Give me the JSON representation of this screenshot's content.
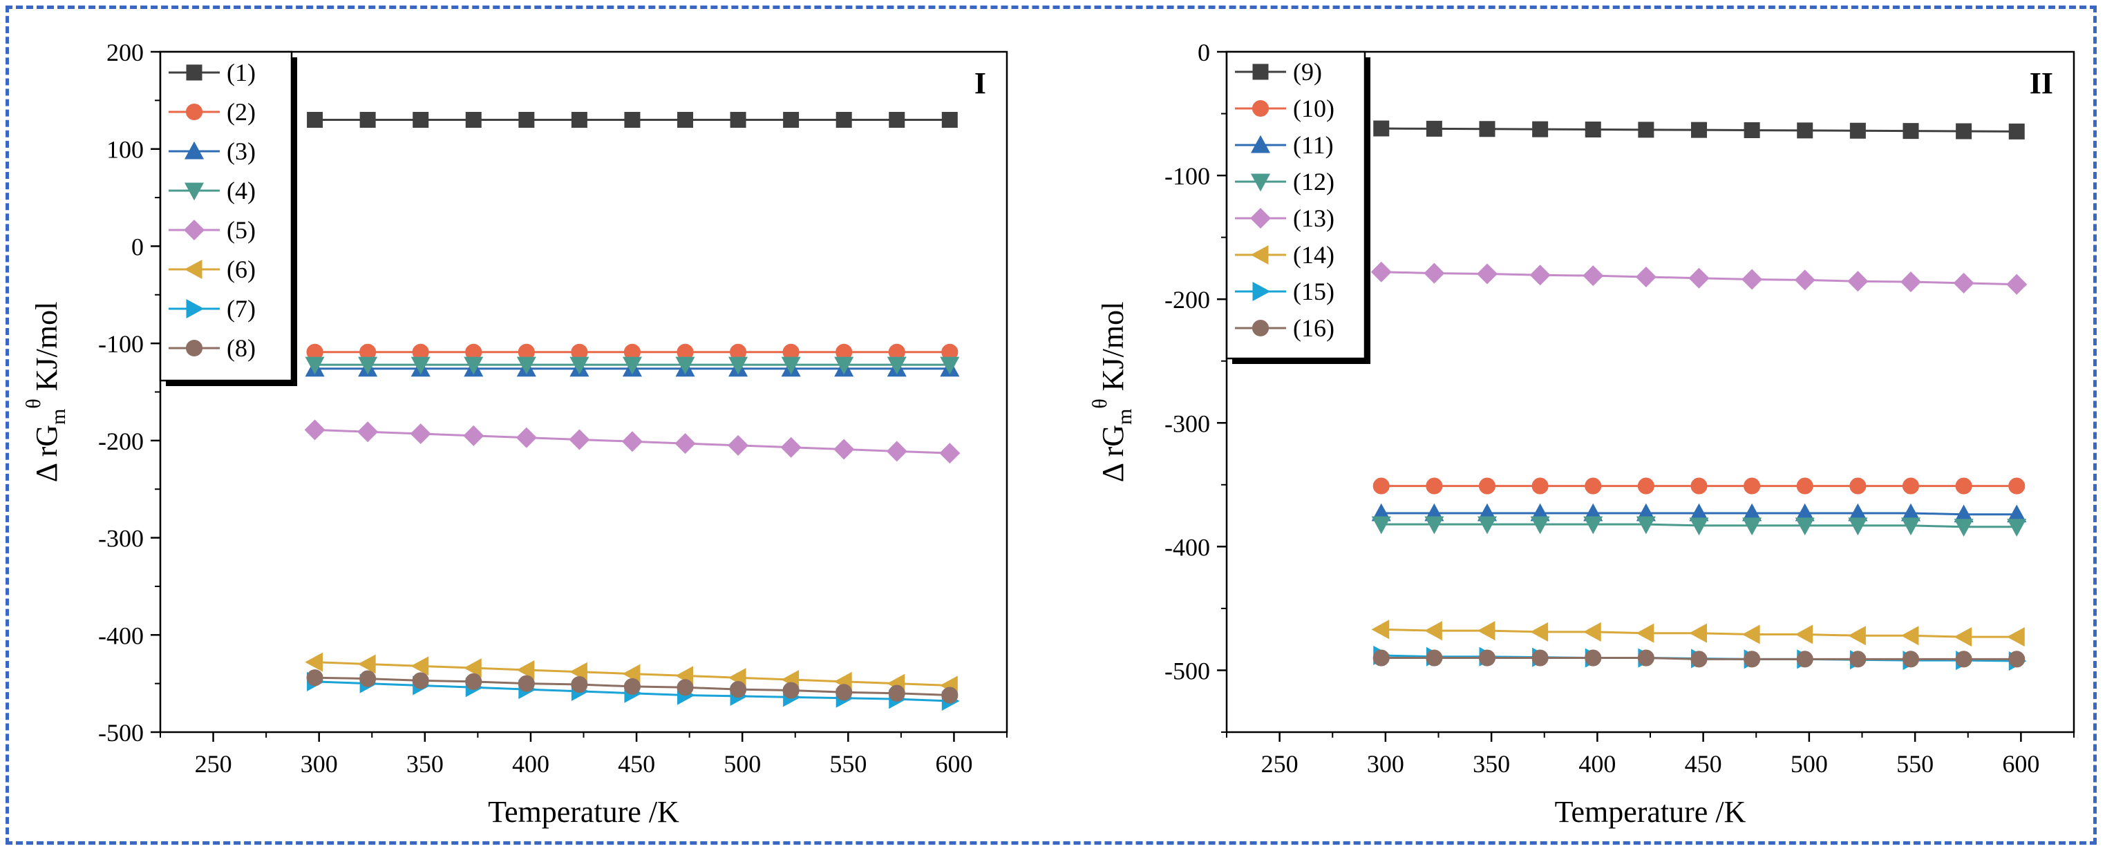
{
  "chart_data": [
    {
      "type": "line",
      "panel_label": "I",
      "xlabel": "Temperature /K",
      "ylabel": "Δ rG_m^θ KJ/mol",
      "ylabel_parts": {
        "prefix": "Δ rG",
        "sub": "m",
        "sup": "θ",
        "suffix": " KJ/mol"
      },
      "xlim": [
        225,
        625
      ],
      "ylim": [
        -500,
        200
      ],
      "xticks": [
        250,
        300,
        350,
        400,
        450,
        500,
        550,
        600
      ],
      "yticks": [
        -500,
        -400,
        -300,
        -200,
        -100,
        0,
        100,
        200
      ],
      "legend_position": "top-left",
      "x": [
        298,
        323,
        348,
        373,
        398,
        423,
        448,
        473,
        498,
        523,
        548,
        573,
        598
      ],
      "series": [
        {
          "name": "(1)",
          "color": "#404040",
          "marker": "square",
          "values": [
            130,
            130,
            130,
            130,
            130,
            130,
            130,
            130,
            130,
            130,
            130,
            130,
            130
          ]
        },
        {
          "name": "(2)",
          "color": "#e8694a",
          "marker": "circle",
          "values": [
            -109,
            -109,
            -109,
            -109,
            -109,
            -109,
            -109,
            -109,
            -109,
            -109,
            -109,
            -109,
            -109
          ]
        },
        {
          "name": "(3)",
          "color": "#2e6db4",
          "marker": "triangle-up",
          "values": [
            -126,
            -126,
            -126,
            -126,
            -126,
            -126,
            -126,
            -126,
            -126,
            -126,
            -126,
            -126,
            -126
          ]
        },
        {
          "name": "(4)",
          "color": "#4a9a8e",
          "marker": "triangle-down",
          "values": [
            -122,
            -122,
            -122,
            -122,
            -122,
            -122,
            -122,
            -122,
            -122,
            -122,
            -122,
            -122,
            -122
          ]
        },
        {
          "name": "(5)",
          "color": "#c58bc9",
          "marker": "diamond",
          "values": [
            -189,
            -191,
            -193,
            -195,
            -197,
            -199,
            -201,
            -203,
            -205,
            -207,
            -209,
            -211,
            -213
          ]
        },
        {
          "name": "(6)",
          "color": "#d8a83a",
          "marker": "triangle-left",
          "values": [
            -428,
            -430,
            -432,
            -434,
            -436,
            -438,
            -440,
            -442,
            -444,
            -446,
            -448,
            -450,
            -452
          ]
        },
        {
          "name": "(7)",
          "color": "#1aa3d6",
          "marker": "triangle-right",
          "values": [
            -448,
            -450,
            -452,
            -454,
            -456,
            -458,
            -460,
            -462,
            -463,
            -464,
            -465,
            -466,
            -468
          ]
        },
        {
          "name": "(8)",
          "color": "#8c6e62",
          "marker": "circle",
          "values": [
            -444,
            -445,
            -447,
            -448,
            -450,
            -451,
            -453,
            -454,
            -456,
            -457,
            -459,
            -460,
            -462
          ]
        }
      ]
    },
    {
      "type": "line",
      "panel_label": "II",
      "xlabel": "Temperature /K",
      "ylabel": "Δ rG_m^θ KJ/mol",
      "ylabel_parts": {
        "prefix": "Δ rG",
        "sub": "m",
        "sup": "θ",
        "suffix": " KJ/mol"
      },
      "xlim": [
        225,
        625
      ],
      "ylim": [
        -550,
        0
      ],
      "xticks": [
        250,
        300,
        350,
        400,
        450,
        500,
        550,
        600
      ],
      "yticks": [
        -500,
        -400,
        -300,
        -200,
        -100,
        0
      ],
      "legend_position": "top-left",
      "x": [
        298,
        323,
        348,
        373,
        398,
        423,
        448,
        473,
        498,
        523,
        548,
        573,
        598
      ],
      "series": [
        {
          "name": "(9)",
          "color": "#404040",
          "marker": "square",
          "values": [
            -62,
            -62.2,
            -62.4,
            -62.6,
            -62.8,
            -63,
            -63.2,
            -63.4,
            -63.6,
            -63.8,
            -64,
            -64.2,
            -64.4
          ]
        },
        {
          "name": "(10)",
          "color": "#e8694a",
          "marker": "circle",
          "values": [
            -351,
            -351,
            -351,
            -351,
            -351,
            -351,
            -351,
            -351,
            -351,
            -351,
            -351,
            -351,
            -351
          ]
        },
        {
          "name": "(11)",
          "color": "#2e6db4",
          "marker": "triangle-up",
          "values": [
            -373,
            -373,
            -373,
            -373,
            -373,
            -373,
            -373,
            -373,
            -373,
            -373,
            -373,
            -374,
            -374
          ]
        },
        {
          "name": "(12)",
          "color": "#4a9a8e",
          "marker": "triangle-down",
          "values": [
            -382,
            -382,
            -382,
            -382,
            -382,
            -382,
            -383,
            -383,
            -383,
            -383,
            -383,
            -384,
            -384
          ]
        },
        {
          "name": "(13)",
          "color": "#c58bc9",
          "marker": "diamond",
          "values": [
            -178,
            -179,
            -179.5,
            -180.5,
            -181,
            -182,
            -183,
            -184,
            -184.5,
            -185.5,
            -186,
            -187,
            -188
          ]
        },
        {
          "name": "(14)",
          "color": "#d8a83a",
          "marker": "triangle-left",
          "values": [
            -467,
            -468,
            -468,
            -469,
            -469,
            -470,
            -470,
            -471,
            -471,
            -472,
            -472,
            -473,
            -473
          ]
        },
        {
          "name": "(15)",
          "color": "#1aa3d6",
          "marker": "triangle-right",
          "values": [
            -488,
            -489,
            -489,
            -489.5,
            -490,
            -490,
            -490.5,
            -491,
            -491,
            -491.5,
            -492,
            -492,
            -492.5
          ]
        },
        {
          "name": "(16)",
          "color": "#8c6e62",
          "marker": "circle",
          "values": [
            -490,
            -490,
            -490,
            -490,
            -490,
            -490,
            -491,
            -491,
            -491,
            -491,
            -491,
            -491,
            -491
          ]
        }
      ]
    }
  ]
}
